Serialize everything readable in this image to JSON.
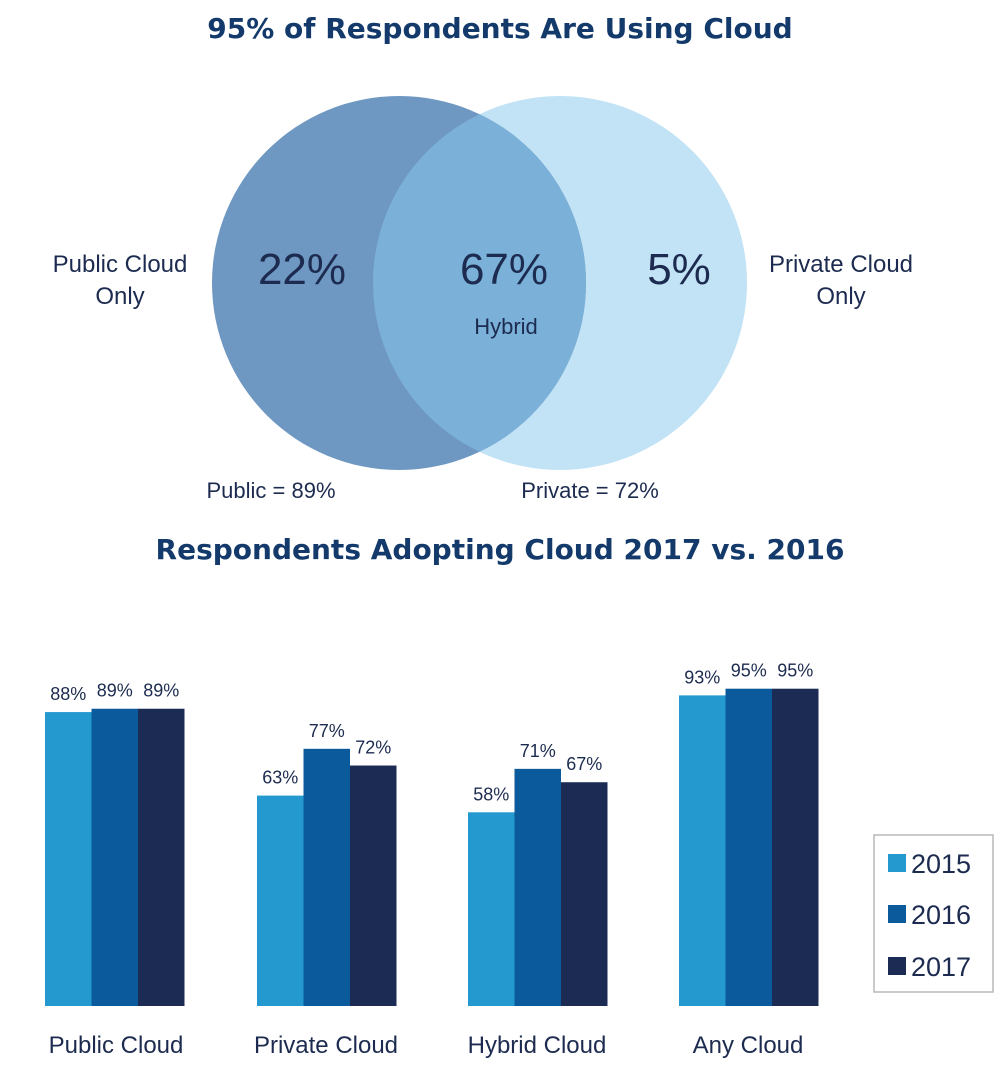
{
  "venn": {
    "title": "95% of Respondents Are Using Cloud",
    "public_only_label": [
      "Public Cloud",
      "Only"
    ],
    "private_only_label": [
      "Private Cloud",
      "Only"
    ],
    "public_only_pct": "22%",
    "hybrid_pct": "67%",
    "hybrid_label": "Hybrid",
    "private_only_pct": "5%",
    "public_total": "Public = 89%",
    "private_total": "Private = 72%",
    "colors": {
      "public": "#6e97c1",
      "private": "#c2e2f5",
      "overlap": "#7bb1d8"
    }
  },
  "chart_data": {
    "type": "bar",
    "title": "Respondents Adopting Cloud 2017 vs. 2016",
    "categories": [
      "Public Cloud",
      "Private Cloud",
      "Hybrid Cloud",
      "Any Cloud"
    ],
    "series": [
      {
        "name": "2015",
        "values": [
          88,
          63,
          58,
          93
        ],
        "color": "#2399cf"
      },
      {
        "name": "2016",
        "values": [
          89,
          77,
          71,
          95
        ],
        "color": "#0b5a9b"
      },
      {
        "name": "2017",
        "values": [
          89,
          72,
          67,
          95
        ],
        "color": "#1c2b54"
      }
    ],
    "value_suffix": "%",
    "ylim": [
      0,
      100
    ],
    "grid": false,
    "legend_position": "right"
  }
}
